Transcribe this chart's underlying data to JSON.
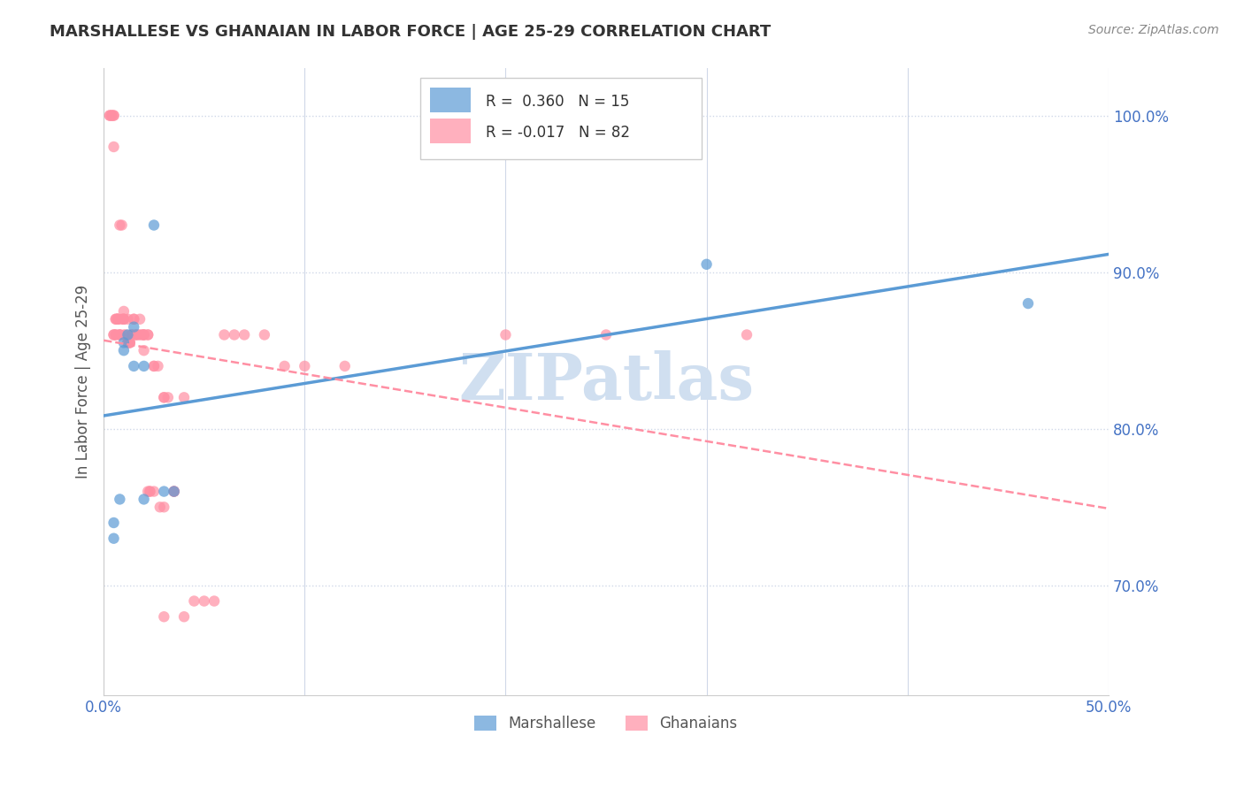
{
  "title": "MARSHALLESE VS GHANAIAN IN LABOR FORCE | AGE 25-29 CORRELATION CHART",
  "source": "Source: ZipAtlas.com",
  "xlabel": "",
  "ylabel": "In Labor Force | Age 25-29",
  "xlim": [
    0.0,
    0.5
  ],
  "ylim": [
    0.63,
    1.03
  ],
  "yticks": [
    0.7,
    0.8,
    0.9,
    1.0
  ],
  "ytick_labels": [
    "70.0%",
    "80.0%",
    "90.0%",
    "100.0%"
  ],
  "xticks": [
    0.0,
    0.1,
    0.2,
    0.3,
    0.4,
    0.5
  ],
  "xtick_labels": [
    "0.0%",
    "",
    "",
    "",
    "",
    "50.0%"
  ],
  "blue_color": "#5b9bd5",
  "pink_color": "#ff8fa3",
  "blue_r": 0.36,
  "blue_n": 15,
  "pink_r": -0.017,
  "pink_n": 82,
  "blue_scatter_x": [
    0.005,
    0.005,
    0.008,
    0.01,
    0.01,
    0.012,
    0.015,
    0.015,
    0.02,
    0.02,
    0.025,
    0.03,
    0.035,
    0.3,
    0.46
  ],
  "blue_scatter_y": [
    0.73,
    0.74,
    0.755,
    0.85,
    0.855,
    0.86,
    0.84,
    0.865,
    0.84,
    0.755,
    0.93,
    0.76,
    0.76,
    0.905,
    0.88
  ],
  "pink_scatter_x": [
    0.003,
    0.003,
    0.004,
    0.004,
    0.005,
    0.005,
    0.005,
    0.005,
    0.005,
    0.006,
    0.006,
    0.006,
    0.006,
    0.007,
    0.007,
    0.007,
    0.007,
    0.008,
    0.008,
    0.008,
    0.008,
    0.009,
    0.009,
    0.01,
    0.01,
    0.01,
    0.01,
    0.01,
    0.011,
    0.012,
    0.012,
    0.012,
    0.013,
    0.013,
    0.013,
    0.014,
    0.014,
    0.015,
    0.015,
    0.016,
    0.016,
    0.017,
    0.018,
    0.018,
    0.019,
    0.02,
    0.02,
    0.02,
    0.02,
    0.022,
    0.022,
    0.022,
    0.023,
    0.023,
    0.025,
    0.025,
    0.025,
    0.027,
    0.028,
    0.03,
    0.03,
    0.03,
    0.03,
    0.032,
    0.035,
    0.035,
    0.035,
    0.04,
    0.04,
    0.045,
    0.05,
    0.055,
    0.06,
    0.065,
    0.07,
    0.08,
    0.09,
    0.1,
    0.12,
    0.2,
    0.25,
    0.32
  ],
  "pink_scatter_y": [
    1.0,
    1.0,
    1.0,
    1.0,
    0.98,
    1.0,
    1.0,
    0.86,
    0.86,
    0.86,
    0.86,
    0.87,
    0.87,
    0.87,
    0.87,
    0.87,
    0.87,
    0.86,
    0.86,
    0.86,
    0.93,
    0.93,
    0.87,
    0.86,
    0.87,
    0.87,
    0.87,
    0.875,
    0.86,
    0.855,
    0.855,
    0.87,
    0.855,
    0.855,
    0.855,
    0.86,
    0.86,
    0.87,
    0.87,
    0.86,
    0.86,
    0.86,
    0.86,
    0.87,
    0.86,
    0.85,
    0.86,
    0.86,
    0.86,
    0.76,
    0.86,
    0.86,
    0.76,
    0.76,
    0.76,
    0.84,
    0.84,
    0.84,
    0.75,
    0.68,
    0.75,
    0.82,
    0.82,
    0.82,
    0.76,
    0.76,
    0.76,
    0.82,
    0.68,
    0.69,
    0.69,
    0.69,
    0.86,
    0.86,
    0.86,
    0.86,
    0.84,
    0.84,
    0.84,
    0.86,
    0.86,
    0.86
  ],
  "axis_color": "#4472c4",
  "grid_color": "#d0d8e8",
  "watermark_text": "ZIPatlas",
  "watermark_color": "#d0dff0",
  "background_color": "#ffffff"
}
